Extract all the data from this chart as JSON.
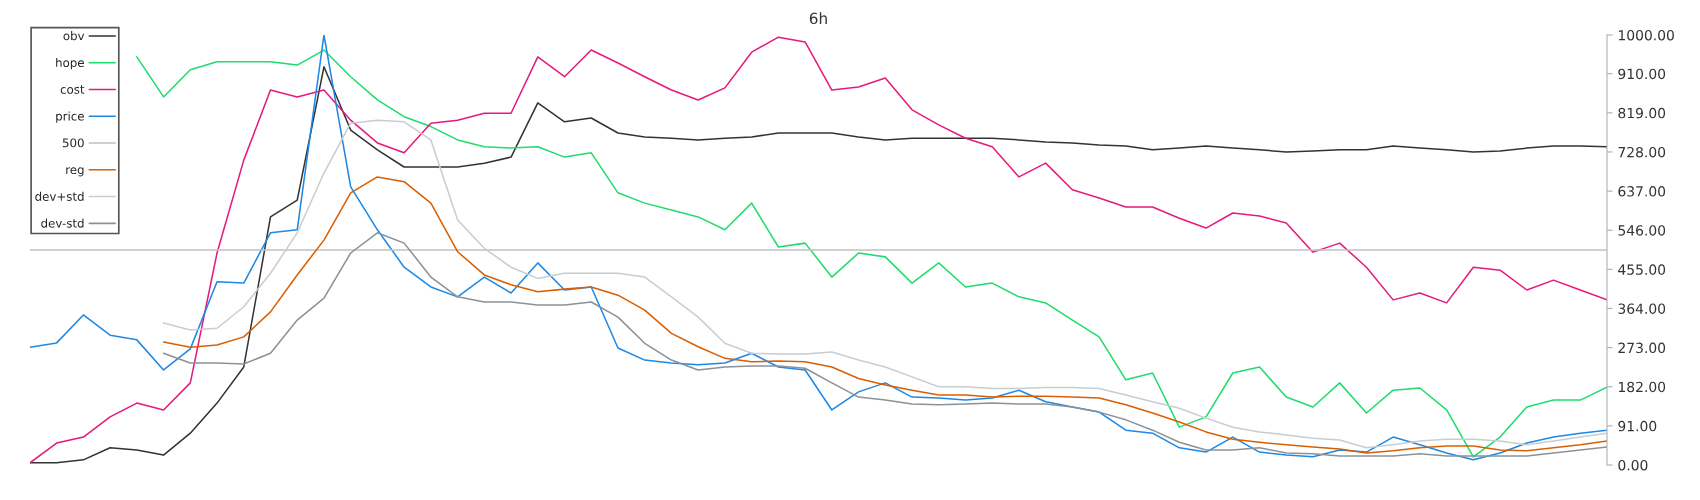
{
  "chart_data": {
    "type": "line",
    "title": "6h",
    "categories": [
      null,
      null,
      null,
      null,
      null,
      null,
      null,
      null,
      null,
      null,
      null,
      null,
      null,
      null,
      null,
      null,
      null,
      null,
      null,
      null,
      null,
      null,
      null,
      null,
      null,
      null,
      null,
      null,
      null,
      null,
      null,
      null,
      null,
      null,
      null,
      null,
      null,
      null,
      null,
      null,
      null,
      null,
      null,
      null,
      null,
      null,
      null,
      null,
      null,
      null,
      null,
      null,
      null,
      null,
      null,
      null,
      null,
      null,
      null,
      null
    ],
    "series": [
      {
        "name": "obv",
        "color": "#333333",
        "values": [
          5,
          5,
          12,
          40,
          35,
          23,
          74,
          144,
          228,
          577,
          616,
          926,
          779,
          733,
          693,
          693,
          693,
          702,
          716,
          842,
          798,
          807,
          772,
          763,
          760,
          756,
          760,
          763,
          772,
          772,
          772,
          763,
          756,
          760,
          760,
          760,
          760,
          756,
          751,
          749,
          744,
          742,
          733,
          737,
          742,
          737,
          733,
          728,
          730,
          733,
          733,
          742,
          737,
          733,
          728,
          730,
          737,
          742,
          742,
          740
        ]
      },
      {
        "name": "hope",
        "color": "#1fdc6e",
        "values": [
          null,
          null,
          null,
          null,
          949,
          856,
          919,
          938,
          938,
          938,
          930,
          965,
          903,
          849,
          810,
          787,
          756,
          740,
          737,
          740,
          716,
          726,
          633,
          609,
          593,
          577,
          547,
          609,
          507,
          516,
          437,
          493,
          484,
          423,
          470,
          414,
          423,
          391,
          377,
          337,
          298,
          198,
          214,
          88,
          112,
          214,
          228,
          158,
          135,
          191,
          121,
          174,
          179,
          128,
          19,
          65,
          135,
          151,
          151,
          181
        ]
      },
      {
        "name": "cost",
        "color": "#e6197e",
        "values": [
          5,
          51,
          65,
          112,
          144,
          128,
          191,
          493,
          709,
          872,
          856,
          872,
          802,
          749,
          726,
          795,
          802,
          818,
          818,
          949,
          903,
          965,
          935,
          903,
          872,
          849,
          877,
          960,
          995,
          984,
          872,
          879,
          900,
          826,
          791,
          760,
          740,
          670,
          702,
          640,
          621,
          600,
          600,
          574,
          551,
          586,
          579,
          563,
          495,
          516,
          460,
          384,
          400,
          377,
          460,
          453,
          407,
          430,
          407,
          384
        ]
      },
      {
        "name": "price",
        "color": "#1e88e5",
        "values": [
          274,
          284,
          349,
          302,
          291,
          221,
          270,
          426,
          423,
          540,
          547,
          1000,
          647,
          547,
          460,
          414,
          391,
          437,
          400,
          470,
          407,
          414,
          272,
          244,
          237,
          233,
          237,
          260,
          228,
          221,
          128,
          170,
          191,
          158,
          156,
          151,
          156,
          174,
          147,
          135,
          123,
          81,
          74,
          40,
          30,
          65,
          30,
          23,
          19,
          35,
          30,
          65,
          47,
          28,
          12,
          28,
          51,
          65,
          74,
          81
        ]
      },
      {
        "name": "500",
        "color": "#c0c0c0",
        "values": [
          500,
          500,
          500,
          500,
          500,
          500,
          500,
          500,
          500,
          500,
          500,
          500,
          500,
          500,
          500,
          500,
          500,
          500,
          500,
          500,
          500,
          500,
          500,
          500,
          500,
          500,
          500,
          500,
          500,
          500,
          500,
          500,
          500,
          500,
          500,
          500,
          500,
          500,
          500,
          500,
          500,
          500,
          500,
          500,
          500,
          500,
          500,
          500,
          500,
          500,
          500,
          500,
          500,
          500,
          500,
          500,
          500,
          500,
          500,
          500
        ]
      },
      {
        "name": "reg",
        "color": "#d95f02",
        "values": [
          null,
          null,
          null,
          null,
          null,
          286,
          274,
          279,
          298,
          356,
          442,
          523,
          633,
          670,
          659,
          609,
          496,
          442,
          419,
          403,
          409,
          414,
          395,
          360,
          306,
          275,
          248,
          240,
          242,
          240,
          228,
          201,
          186,
          174,
          163,
          163,
          158,
          160,
          160,
          158,
          156,
          140,
          121,
          100,
          77,
          60,
          53,
          47,
          42,
          37,
          28,
          33,
          40,
          44,
          44,
          35,
          33,
          40,
          47,
          56
        ]
      },
      {
        "name": "dev+std",
        "color": "#c8cdd2",
        "values": [
          null,
          null,
          null,
          null,
          null,
          330,
          314,
          318,
          368,
          446,
          540,
          679,
          795,
          802,
          798,
          756,
          570,
          504,
          460,
          434,
          446,
          446,
          446,
          437,
          391,
          344,
          283,
          260,
          258,
          258,
          263,
          244,
          228,
          205,
          182,
          182,
          178,
          178,
          180,
          180,
          178,
          163,
          147,
          132,
          109,
          88,
          77,
          70,
          62,
          58,
          40,
          47,
          56,
          60,
          60,
          56,
          47,
          56,
          65,
          74
        ]
      },
      {
        "name": "dev-std",
        "color": "#8a9299",
        "values": [
          null,
          null,
          null,
          null,
          null,
          260,
          237,
          237,
          235,
          260,
          337,
          388,
          493,
          540,
          516,
          437,
          391,
          379,
          379,
          372,
          372,
          379,
          344,
          283,
          244,
          221,
          228,
          230,
          230,
          225,
          191,
          158,
          151,
          142,
          140,
          142,
          144,
          142,
          142,
          135,
          123,
          105,
          81,
          53,
          35,
          35,
          40,
          28,
          26,
          21,
          21,
          21,
          26,
          21,
          21,
          21,
          21,
          28,
          35,
          42
        ]
      }
    ],
    "ylim": [
      0,
      1000
    ],
    "yticks": [
      {
        "value": 0,
        "label": "0.00"
      },
      {
        "value": 91,
        "label": "91.00"
      },
      {
        "value": 182,
        "label": "182.00"
      },
      {
        "value": 273,
        "label": "273.00"
      },
      {
        "value": 364,
        "label": "364.00"
      },
      {
        "value": 455,
        "label": "455.00"
      },
      {
        "value": 546,
        "label": "546.00"
      },
      {
        "value": 637,
        "label": "637.00"
      },
      {
        "value": 728,
        "label": "728.00"
      },
      {
        "value": 819,
        "label": "819.00"
      },
      {
        "value": 910,
        "label": "910.00"
      },
      {
        "value": 1000,
        "label": "1000.00"
      }
    ],
    "tick_labels": "y",
    "grid": false,
    "legend": "top left",
    "marker": "none",
    "line_style": "solid"
  }
}
